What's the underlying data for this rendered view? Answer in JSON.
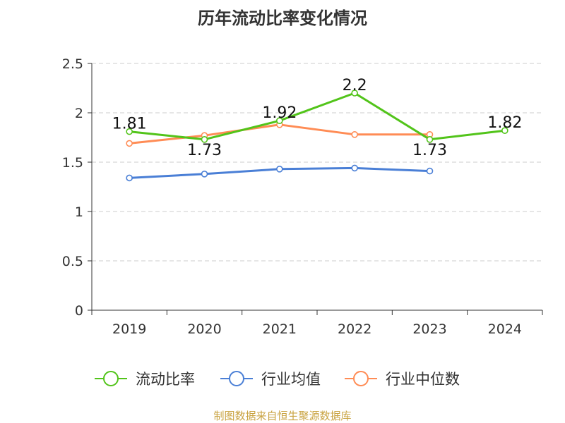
{
  "chart_data": {
    "type": "line",
    "title": "历年流动比率变化情况",
    "categories": [
      "2019",
      "2020",
      "2021",
      "2022",
      "2023",
      "2024"
    ],
    "ylim": [
      0,
      2.5
    ],
    "yticks": [
      "0",
      "0.5",
      "1",
      "1.5",
      "2",
      "2.5"
    ],
    "grid": true,
    "legend_position": "bottom",
    "series": [
      {
        "name": "流动比率",
        "color": "#52c41a",
        "values": [
          1.81,
          1.73,
          1.92,
          2.2,
          1.73,
          1.82
        ],
        "labels": [
          "1.81",
          "1.73",
          "1.92",
          "2.2",
          "1.73",
          "1.82"
        ]
      },
      {
        "name": "行业均值",
        "color": "#4a7fd6",
        "values": [
          1.34,
          1.38,
          1.43,
          1.44,
          1.41,
          null
        ]
      },
      {
        "name": "行业中位数",
        "color": "#ff8c55",
        "values": [
          1.69,
          1.77,
          1.88,
          1.78,
          1.78,
          null
        ]
      }
    ]
  },
  "source": "制图数据来自恒生聚源数据库"
}
